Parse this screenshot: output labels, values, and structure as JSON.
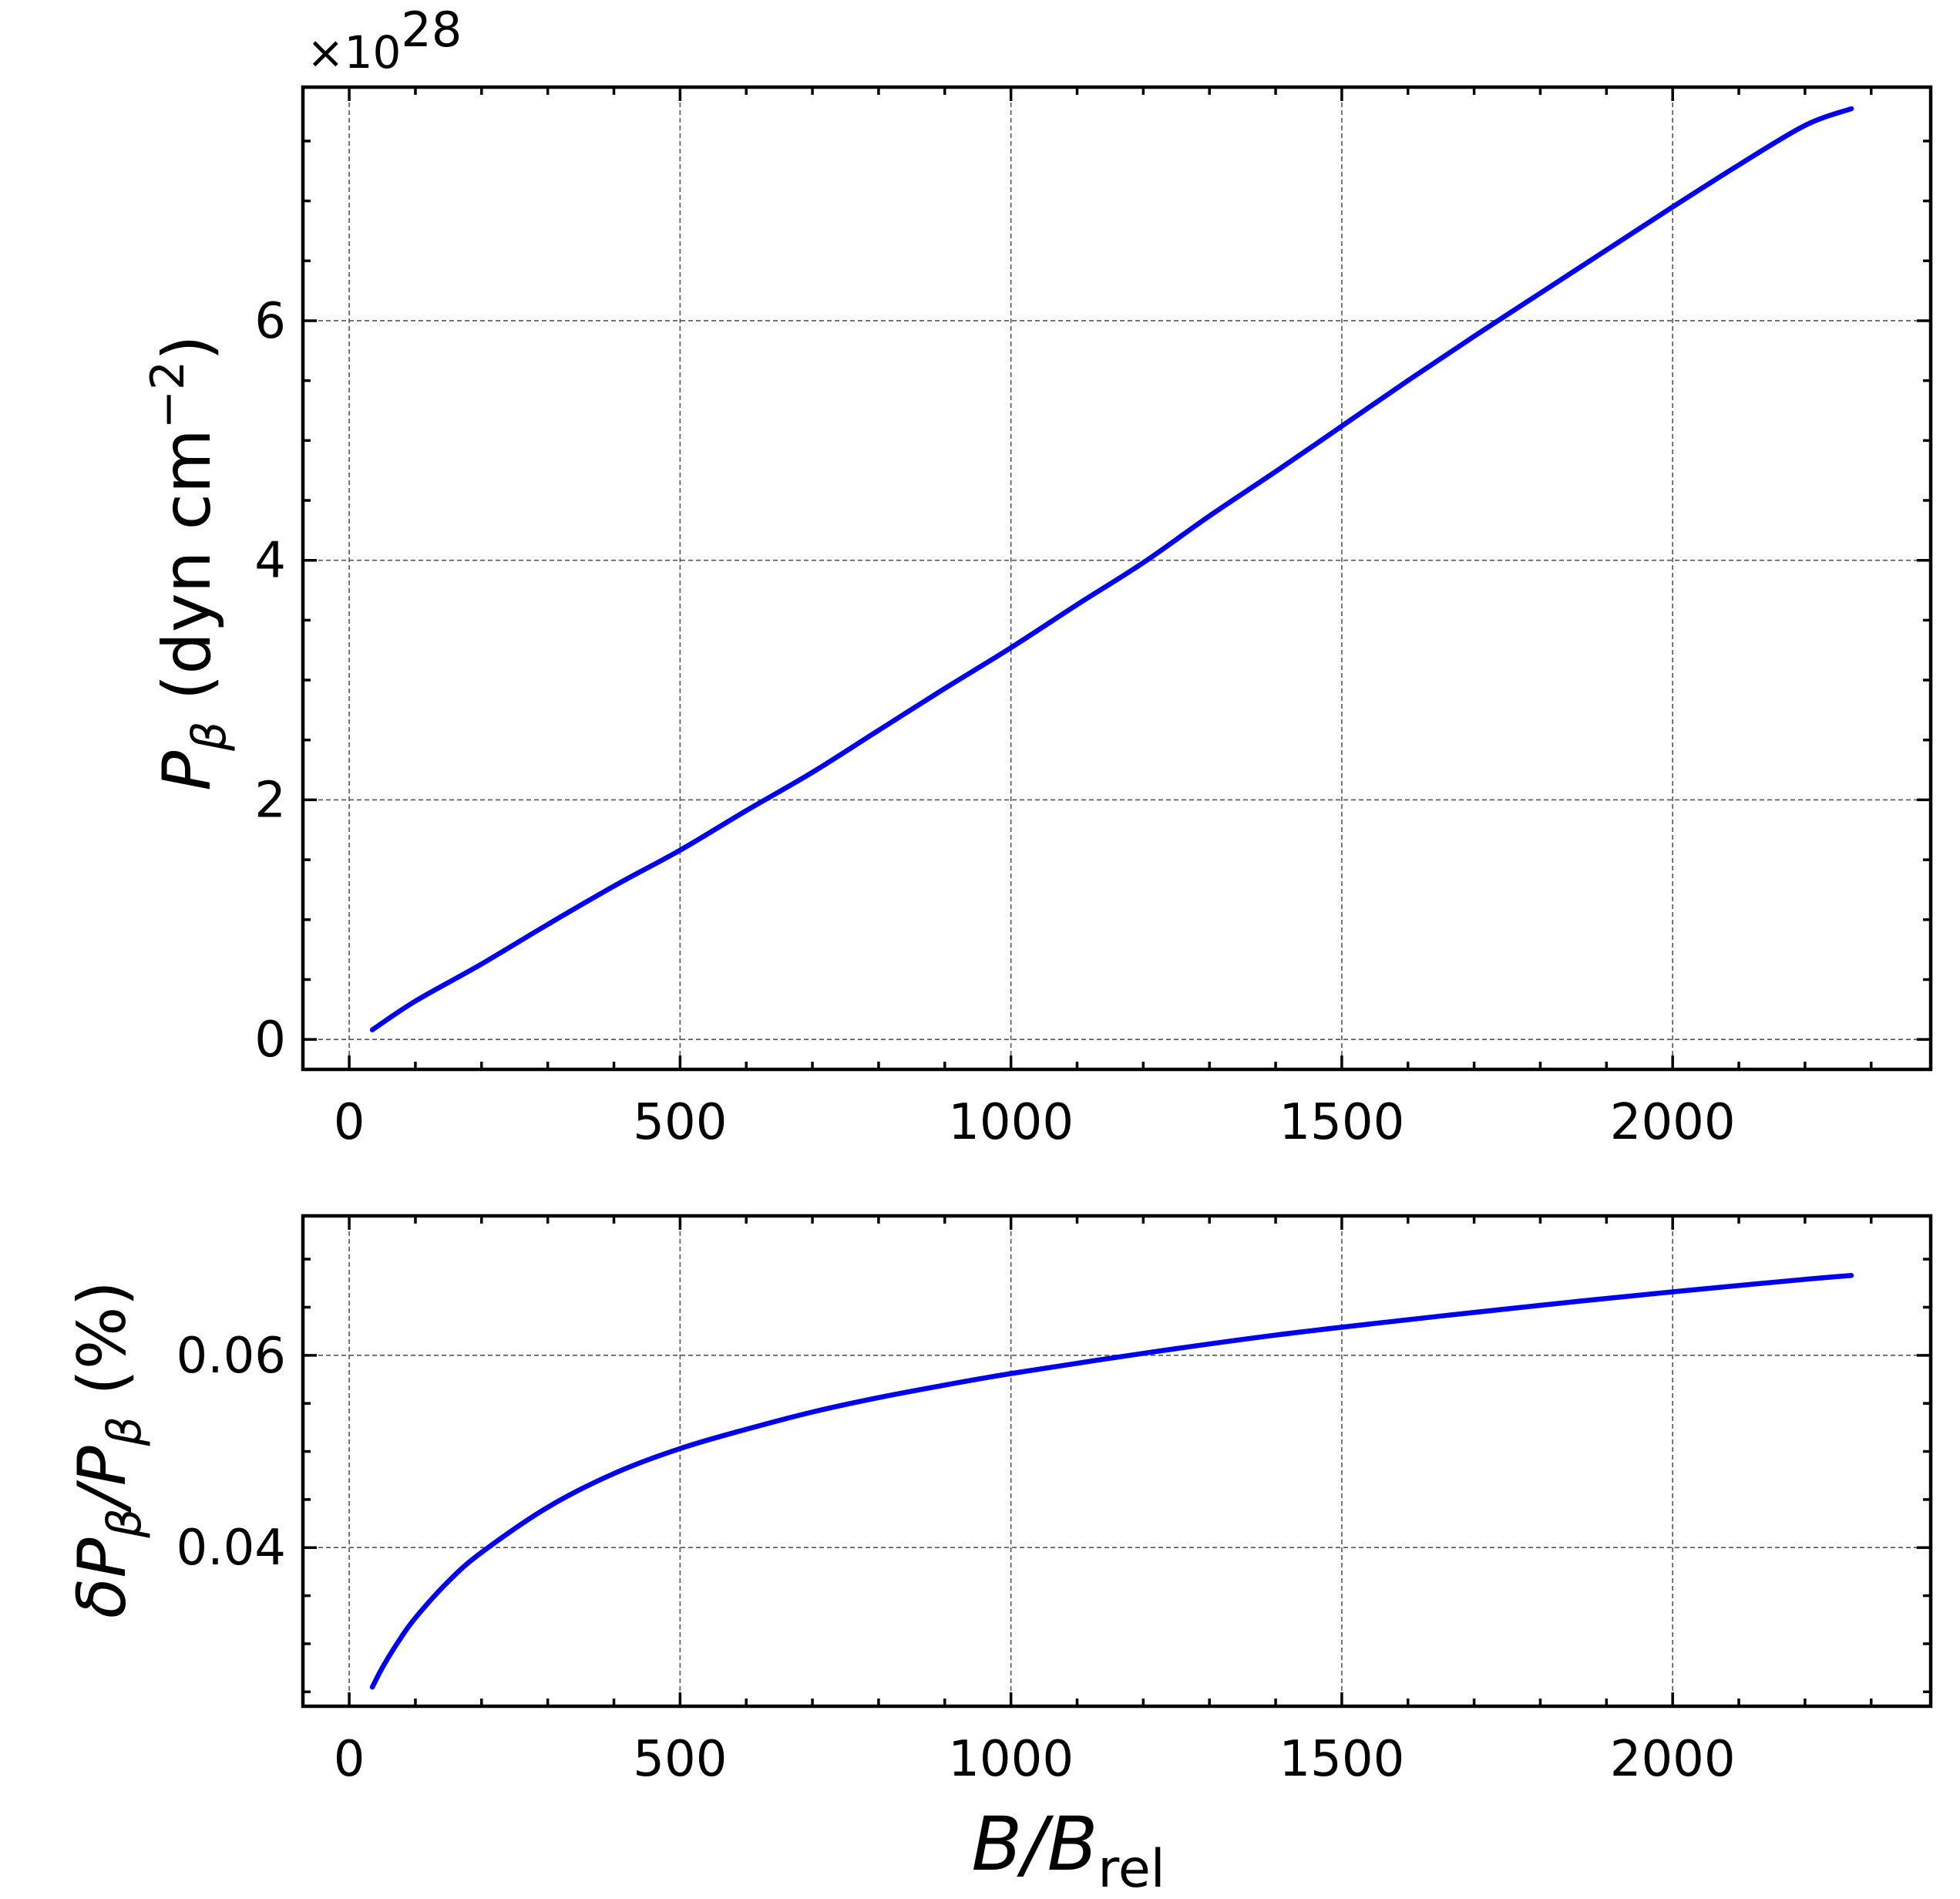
{
  "chart_data": [
    {
      "type": "line",
      "panel": "top",
      "ylabel_symbol": "P",
      "ylabel_subscript": "β",
      "ylabel_units": "(dyn cm",
      "ylabel_exp": "−2",
      "ylabel_close": ")",
      "offset_text": "×10",
      "offset_exp": "28",
      "xlim": [
        -70,
        2390
      ],
      "ylim": [
        -0.25,
        7.95
      ],
      "xticks": [
        0,
        500,
        1000,
        1500,
        2000
      ],
      "xtick_labels": [
        "0",
        "500",
        "1000",
        "1500",
        "2000"
      ],
      "yticks": [
        0,
        2,
        4,
        6
      ],
      "ytick_labels": [
        "0",
        "2",
        "4",
        "6"
      ],
      "grid": true,
      "series": [
        {
          "name": "P_beta",
          "color": "#0000ee",
          "x": [
            35,
            100,
            200,
            300,
            400,
            500,
            600,
            700,
            800,
            900,
            1000,
            1100,
            1200,
            1300,
            1400,
            1500,
            1600,
            1700,
            1800,
            1900,
            2000,
            2100,
            2200,
            2270
          ],
          "y": [
            0.08,
            0.32,
            0.63,
            0.96,
            1.28,
            1.58,
            1.91,
            2.23,
            2.58,
            2.93,
            3.27,
            3.63,
            3.98,
            4.37,
            4.74,
            5.12,
            5.5,
            5.87,
            6.23,
            6.59,
            6.95,
            7.3,
            7.63,
            7.77
          ]
        }
      ]
    },
    {
      "type": "line",
      "panel": "bottom",
      "ylabel_delta": "δ",
      "ylabel_symbol": "P",
      "ylabel_subscript": "β",
      "ylabel_slash": "/",
      "ylabel_units": "(%)",
      "xlabel_symbol": "B/B",
      "xlabel_subscript": "rel",
      "xlim": [
        -70,
        2390
      ],
      "ylim": [
        0.0235,
        0.0745
      ],
      "xticks": [
        0,
        500,
        1000,
        1500,
        2000
      ],
      "xtick_labels": [
        "0",
        "500",
        "1000",
        "1500",
        "2000"
      ],
      "yticks": [
        0.04,
        0.06
      ],
      "ytick_labels": [
        "0.04",
        "0.06"
      ],
      "grid": true,
      "series": [
        {
          "name": "dP_over_P",
          "color": "#0000ee",
          "x": [
            35,
            50,
            75,
            100,
            150,
            200,
            300,
            400,
            500,
            600,
            700,
            800,
            900,
            1000,
            1200,
            1400,
            1600,
            1800,
            2000,
            2200,
            2270
          ],
          "y": [
            0.0255,
            0.0275,
            0.0303,
            0.0327,
            0.0365,
            0.0395,
            0.0442,
            0.0477,
            0.0503,
            0.0523,
            0.0541,
            0.0556,
            0.0569,
            0.0581,
            0.0602,
            0.0621,
            0.0637,
            0.0652,
            0.0666,
            0.0679,
            0.0683
          ]
        }
      ]
    }
  ]
}
